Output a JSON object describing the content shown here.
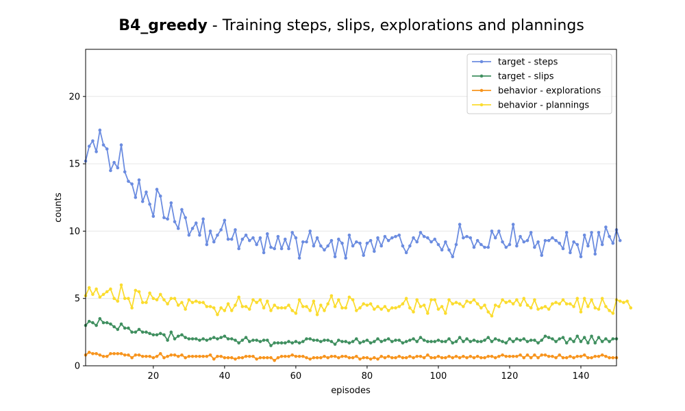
{
  "chart_data": {
    "type": "line",
    "title_bold": "B4_greedy",
    "title_rest": " - Training steps, slips, explorations and plannings",
    "xlabel": "episodes",
    "ylabel": "counts",
    "xlim": [
      1,
      150
    ],
    "ylim": [
      0,
      23.5
    ],
    "xticks": [
      20,
      40,
      60,
      80,
      100,
      120,
      140
    ],
    "yticks": [
      0,
      5,
      10,
      15,
      20
    ],
    "grid": "horizontal",
    "legend_position": "top-right",
    "series": [
      {
        "name": "target - steps",
        "color": "#6b8ce0",
        "values": [
          15.2,
          16.3,
          16.7,
          15.9,
          17.5,
          16.4,
          16.1,
          14.5,
          15.1,
          14.7,
          16.4,
          14.4,
          13.7,
          13.5,
          12.5,
          13.8,
          12.2,
          12.9,
          12.0,
          11.1,
          13.1,
          12.6,
          11.0,
          10.9,
          12.1,
          10.7,
          10.2,
          11.6,
          11.0,
          9.7,
          10.2,
          10.6,
          9.7,
          10.9,
          9.0,
          10.0,
          9.2,
          9.7,
          10.1,
          10.8,
          9.4,
          9.4,
          10.1,
          8.7,
          9.4,
          9.7,
          9.3,
          9.5,
          9.0,
          9.5,
          8.4,
          9.8,
          8.8,
          8.7,
          9.6,
          8.7,
          9.4,
          8.7,
          9.9,
          9.5,
          8.0,
          9.2,
          9.2,
          10.0,
          8.9,
          9.5,
          8.9,
          8.6,
          8.9,
          9.3,
          8.1,
          9.4,
          9.1,
          8.0,
          9.7,
          8.9,
          9.2,
          9.1,
          8.2,
          9.1,
          9.3,
          8.5,
          9.5,
          8.9,
          9.6,
          9.3,
          9.5,
          9.6,
          9.7,
          8.9,
          8.4,
          8.9,
          9.5,
          9.2,
          9.9,
          9.6,
          9.5,
          9.2,
          9.4,
          9.0,
          8.6,
          9.2,
          8.6,
          8.1,
          9.0,
          10.5,
          9.5,
          9.6,
          9.5,
          8.8,
          9.3,
          9.0,
          8.8,
          8.8,
          10.0,
          9.5,
          10.0,
          9.2,
          8.8,
          9.0,
          10.5,
          8.9,
          9.6,
          9.2,
          9.3,
          9.9,
          8.8,
          9.2,
          8.2,
          9.3,
          9.3,
          9.5,
          9.3,
          9.1,
          8.7,
          9.9,
          8.4,
          9.2,
          9.0,
          8.1,
          9.7,
          8.9,
          9.9,
          8.3,
          9.9,
          9.0,
          10.3,
          9.6,
          9.1,
          10.1,
          9.3
        ]
      },
      {
        "name": "target - slips",
        "color": "#3f8f5f",
        "values": [
          3.0,
          3.3,
          3.2,
          3.0,
          3.5,
          3.2,
          3.2,
          3.1,
          2.9,
          2.7,
          3.1,
          2.8,
          2.8,
          2.5,
          2.5,
          2.7,
          2.5,
          2.5,
          2.4,
          2.3,
          2.3,
          2.4,
          2.3,
          1.9,
          2.5,
          2.0,
          2.2,
          2.3,
          2.1,
          2.0,
          2.0,
          2.0,
          1.9,
          2.0,
          1.9,
          2.0,
          2.1,
          2.0,
          2.1,
          2.2,
          2.0,
          2.0,
          1.9,
          1.7,
          1.9,
          2.1,
          1.8,
          1.9,
          1.9,
          1.8,
          1.9,
          1.9,
          1.5,
          1.7,
          1.7,
          1.7,
          1.7,
          1.8,
          1.7,
          1.8,
          1.7,
          1.8,
          2.0,
          2.0,
          1.9,
          1.9,
          1.8,
          1.9,
          1.9,
          1.8,
          1.6,
          1.9,
          1.8,
          1.8,
          1.7,
          1.8,
          2.0,
          1.7,
          1.8,
          1.9,
          1.7,
          1.8,
          2.0,
          1.8,
          1.9,
          2.0,
          1.8,
          1.9,
          1.9,
          1.7,
          1.8,
          1.9,
          2.0,
          1.8,
          2.1,
          1.9,
          1.8,
          1.8,
          1.8,
          1.9,
          1.8,
          1.8,
          2.0,
          1.7,
          1.8,
          2.1,
          1.8,
          2.0,
          1.8,
          1.9,
          1.8,
          1.8,
          1.9,
          2.1,
          1.8,
          2.0,
          1.9,
          1.8,
          1.7,
          2.0,
          1.8,
          2.0,
          1.9,
          2.0,
          1.8,
          1.9,
          1.9,
          1.7,
          1.9,
          2.2,
          2.1,
          2.0,
          1.8,
          2.0,
          2.1,
          1.7,
          2.0,
          1.8,
          2.2,
          1.8,
          2.1,
          1.7,
          2.2,
          1.7,
          2.1,
          1.8,
          2.0,
          1.8,
          2.0,
          2.0
        ]
      },
      {
        "name": "behavior - explorations",
        "color": "#f7941d",
        "values": [
          0.8,
          1.0,
          0.9,
          0.9,
          0.8,
          0.7,
          0.7,
          0.9,
          0.9,
          0.9,
          0.9,
          0.8,
          0.8,
          0.6,
          0.8,
          0.8,
          0.7,
          0.7,
          0.7,
          0.6,
          0.7,
          0.9,
          0.6,
          0.7,
          0.8,
          0.8,
          0.7,
          0.8,
          0.6,
          0.7,
          0.7,
          0.7,
          0.7,
          0.7,
          0.7,
          0.8,
          0.5,
          0.7,
          0.7,
          0.6,
          0.6,
          0.6,
          0.5,
          0.6,
          0.6,
          0.7,
          0.7,
          0.7,
          0.5,
          0.6,
          0.6,
          0.6,
          0.6,
          0.4,
          0.6,
          0.7,
          0.7,
          0.7,
          0.8,
          0.7,
          0.7,
          0.7,
          0.6,
          0.5,
          0.6,
          0.6,
          0.6,
          0.7,
          0.6,
          0.7,
          0.7,
          0.6,
          0.7,
          0.7,
          0.6,
          0.6,
          0.7,
          0.5,
          0.6,
          0.6,
          0.5,
          0.6,
          0.5,
          0.7,
          0.6,
          0.7,
          0.6,
          0.6,
          0.7,
          0.6,
          0.6,
          0.7,
          0.6,
          0.7,
          0.7,
          0.6,
          0.8,
          0.6,
          0.6,
          0.7,
          0.6,
          0.6,
          0.7,
          0.6,
          0.7,
          0.6,
          0.7,
          0.6,
          0.7,
          0.6,
          0.7,
          0.6,
          0.6,
          0.7,
          0.7,
          0.6,
          0.7,
          0.8,
          0.7,
          0.7,
          0.7,
          0.7,
          0.8,
          0.6,
          0.8,
          0.6,
          0.8,
          0.6,
          0.8,
          0.8,
          0.7,
          0.7,
          0.6,
          0.8,
          0.6,
          0.6,
          0.7,
          0.6,
          0.7,
          0.7,
          0.8,
          0.6,
          0.6,
          0.7,
          0.7,
          0.8,
          0.7,
          0.6,
          0.6,
          0.6
        ]
      },
      {
        "name": "behavior - plannings",
        "color": "#fbdc2e",
        "values": [
          5.2,
          5.8,
          5.3,
          5.7,
          5.1,
          5.3,
          5.5,
          5.7,
          5.0,
          4.8,
          6.0,
          5.0,
          5.0,
          4.3,
          5.6,
          5.5,
          4.7,
          4.7,
          5.4,
          5.0,
          4.9,
          5.3,
          4.9,
          4.6,
          5.0,
          5.0,
          4.5,
          4.7,
          4.2,
          4.9,
          4.7,
          4.8,
          4.7,
          4.7,
          4.4,
          4.4,
          4.3,
          3.8,
          4.3,
          4.1,
          4.6,
          4.1,
          4.5,
          5.1,
          4.4,
          4.4,
          4.2,
          4.9,
          4.7,
          4.9,
          4.3,
          4.8,
          4.1,
          4.5,
          4.3,
          4.3,
          4.3,
          4.5,
          4.1,
          3.9,
          4.9,
          4.4,
          4.4,
          4.1,
          4.8,
          3.8,
          4.5,
          4.1,
          4.6,
          5.2,
          4.4,
          4.9,
          4.3,
          4.3,
          5.1,
          4.9,
          4.1,
          4.3,
          4.6,
          4.5,
          4.6,
          4.2,
          4.4,
          4.2,
          4.4,
          4.1,
          4.3,
          4.3,
          4.4,
          4.6,
          5.0,
          4.3,
          4.0,
          4.9,
          4.4,
          4.5,
          3.9,
          4.9,
          4.9,
          4.2,
          4.4,
          3.9,
          4.9,
          4.6,
          4.7,
          4.6,
          4.4,
          4.8,
          4.7,
          4.9,
          4.6,
          4.3,
          4.5,
          4.0,
          3.7,
          4.5,
          4.4,
          4.9,
          4.7,
          4.8,
          4.6,
          4.9,
          4.5,
          5.0,
          4.5,
          4.3,
          4.9,
          4.2,
          4.3,
          4.4,
          4.2,
          4.6,
          4.7,
          4.6,
          4.9,
          4.6,
          4.6,
          4.4,
          5.0,
          4.0,
          5.0,
          4.4,
          4.9,
          4.3,
          4.2,
          5.0,
          4.4,
          4.1,
          3.9,
          4.9,
          4.8,
          4.7,
          4.8,
          4.3
        ]
      }
    ]
  }
}
